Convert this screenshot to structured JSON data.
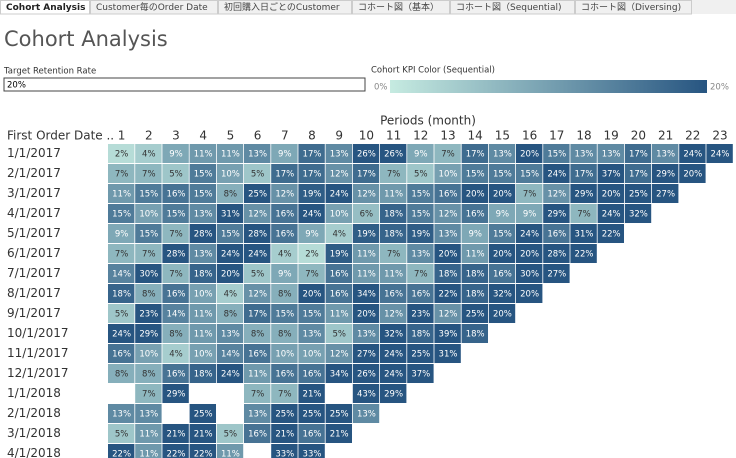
{
  "tabs": [
    "Cohort Analysis",
    "Customer毎のOrder Date",
    "初回購入日ごとのCustomer",
    "コホート図（基本）",
    "コホート図（Sequential)",
    "コホート図（Diversing)"
  ],
  "controls": {
    "target_label": "Target Retention Rate",
    "target_value": "20%",
    "color_legend_title": "Cohort KPI Color (Sequential)"
  },
  "chart_data": {
    "type": "heatmap",
    "title": "Cohort Analysis",
    "x_label": "Periods (month)",
    "y_label": "First Order Date ..",
    "x": [
      1,
      2,
      3,
      4,
      5,
      6,
      7,
      8,
      9,
      10,
      11,
      12,
      13,
      14,
      15,
      16,
      17,
      18,
      19,
      20,
      21,
      22,
      23
    ],
    "y": [
      "1/1/2017",
      "2/1/2017",
      "3/1/2017",
      "4/1/2017",
      "5/1/2017",
      "6/1/2017",
      "7/1/2017",
      "8/1/2017",
      "9/1/2017",
      "10/1/2017",
      "11/1/2017",
      "12/1/2017",
      "1/1/2018",
      "2/1/2018",
      "3/1/2018",
      "4/1/2018"
    ],
    "values": [
      [
        2,
        4,
        9,
        11,
        11,
        13,
        9,
        17,
        13,
        26,
        26,
        9,
        7,
        17,
        13,
        20,
        15,
        13,
        13,
        17,
        13,
        24,
        24
      ],
      [
        7,
        7,
        5,
        15,
        10,
        5,
        17,
        17,
        12,
        17,
        7,
        5,
        10,
        15,
        15,
        15,
        24,
        17,
        37,
        17,
        29,
        20
      ],
      [
        11,
        15,
        16,
        15,
        8,
        25,
        12,
        19,
        24,
        12,
        11,
        15,
        16,
        20,
        20,
        7,
        12,
        29,
        20,
        25,
        27
      ],
      [
        15,
        10,
        15,
        13,
        31,
        12,
        16,
        24,
        10,
        6,
        18,
        15,
        12,
        16,
        9,
        9,
        29,
        7,
        24,
        32
      ],
      [
        9,
        15,
        7,
        28,
        15,
        28,
        16,
        9,
        4,
        19,
        18,
        19,
        13,
        9,
        15,
        24,
        16,
        31,
        22
      ],
      [
        7,
        7,
        28,
        13,
        24,
        24,
        4,
        2,
        19,
        11,
        7,
        13,
        20,
        11,
        20,
        20,
        28,
        22
      ],
      [
        14,
        30,
        7,
        18,
        20,
        5,
        9,
        7,
        16,
        11,
        11,
        7,
        18,
        18,
        16,
        30,
        27
      ],
      [
        18,
        8,
        16,
        10,
        4,
        12,
        8,
        20,
        16,
        34,
        16,
        16,
        22,
        18,
        32,
        20
      ],
      [
        5,
        23,
        14,
        11,
        8,
        17,
        15,
        15,
        11,
        20,
        12,
        23,
        12,
        25,
        20
      ],
      [
        24,
        29,
        8,
        11,
        13,
        8,
        8,
        13,
        5,
        13,
        32,
        18,
        39,
        18
      ],
      [
        16,
        10,
        4,
        10,
        14,
        16,
        10,
        10,
        12,
        27,
        24,
        25,
        31
      ],
      [
        8,
        8,
        16,
        18,
        24,
        11,
        16,
        16,
        34,
        26,
        24,
        37
      ],
      [
        null,
        7,
        29,
        null,
        null,
        7,
        7,
        21,
        null,
        43,
        29
      ],
      [
        13,
        13,
        null,
        25,
        null,
        13,
        25,
        25,
        25,
        13
      ],
      [
        5,
        11,
        21,
        21,
        5,
        16,
        21,
        16,
        21
      ],
      [
        22,
        11,
        22,
        22,
        11,
        null,
        33,
        33
      ]
    ],
    "value_labels": [
      [
        "2%",
        "4%",
        "9%",
        "11%",
        "11%",
        "13%",
        "9%",
        "17%",
        "13%",
        "26%",
        "26%",
        "9%",
        "7%",
        "17%",
        "13%",
        "20%",
        "15%",
        "13%",
        "13%",
        "17%",
        "13%",
        "24%",
        "24%"
      ],
      [
        "7%",
        "7%",
        "5%",
        "15%",
        "10%",
        "5%",
        "17%",
        "17%",
        "12%",
        "17%",
        "7%",
        "5%",
        "10%",
        "15%",
        "15%",
        "15%",
        "24%",
        "17%",
        "37%",
        "17%",
        "29%",
        "20%"
      ],
      [
        "11%",
        "15%",
        "16%",
        "15%",
        "8%",
        "25%",
        "12%",
        "19%",
        "24%",
        "12%",
        "11%",
        "15%",
        "16%",
        "20%",
        "20%",
        "7%",
        "12%",
        "29%",
        "20%",
        "25%",
        "27%"
      ],
      [
        "15%",
        "10%",
        "15%",
        "13%",
        "31%",
        "12%",
        "16%",
        "24%",
        "10%",
        "6%",
        "18%",
        "15%",
        "12%",
        "16%",
        "9%",
        "9%",
        "29%",
        "7%",
        "24%",
        "32%"
      ],
      [
        "9%",
        "15%",
        "7%",
        "28%",
        "15%",
        "28%",
        "16%",
        "9%",
        "4%",
        "19%",
        "18%",
        "19%",
        "13%",
        "9%",
        "15%",
        "24%",
        "16%",
        "31%",
        "22%"
      ],
      [
        "7%",
        "7%",
        "28%",
        "13%",
        "24%",
        "24%",
        "4%",
        "2%",
        "19%",
        "11%",
        "7%",
        "13%",
        "20%",
        "11%",
        "20%",
        "20%",
        "28%",
        "22%"
      ],
      [
        "14%",
        "30%",
        "7%",
        "18%",
        "20%",
        "5%",
        "9%",
        "7%",
        "16%",
        "11%",
        "11%",
        "7%",
        "18%",
        "18%",
        "16%",
        "30%",
        "27%"
      ],
      [
        "18%",
        "8%",
        "16%",
        "10%",
        "4%",
        "12%",
        "8%",
        "20%",
        "16%",
        "34%",
        "16%",
        "16%",
        "22%",
        "18%",
        "32%",
        "20%"
      ],
      [
        "5%",
        "23%",
        "14%",
        "11%",
        "8%",
        "17%",
        "15%",
        "15%",
        "11%",
        "20%",
        "12%",
        "23%",
        "12%",
        "25%",
        "20%"
      ],
      [
        "24%",
        "29%",
        "8%",
        "11%",
        "13%",
        "8%",
        "8%",
        "13%",
        "5%",
        "13%",
        "32%",
        "18%",
        "39%",
        "18%"
      ],
      [
        "16%",
        "10%",
        "4%",
        "10%",
        "14%",
        "16%",
        "10%",
        "10%",
        "12%",
        "27%",
        "24%",
        "25%",
        "31%"
      ],
      [
        "8%",
        "8%",
        "16%",
        "18%",
        "24%",
        "11%",
        "16%",
        "16%",
        "34%",
        "26%",
        "24%",
        "37%"
      ],
      [
        null,
        "7%",
        "29%",
        null,
        null,
        "7%",
        "7%",
        "21%",
        null,
        "43%",
        "29%"
      ],
      [
        "13%",
        "13%",
        null,
        "25%",
        null,
        "13%",
        "25%",
        "25%",
        "25%",
        "13%"
      ],
      [
        "5%",
        "11%",
        "21%",
        "21%",
        "5%",
        "16%",
        "21%",
        "16%",
        "21%"
      ],
      [
        "22%",
        "11%",
        "22%",
        "22%",
        "11%",
        null,
        "33%",
        "33%"
      ]
    ],
    "color_scale": {
      "min": {
        "value": 0,
        "label": "0%"
      },
      "max": {
        "value": 20,
        "label": "20%"
      },
      "colors": [
        "#c6ebe1",
        "#275581"
      ]
    }
  }
}
